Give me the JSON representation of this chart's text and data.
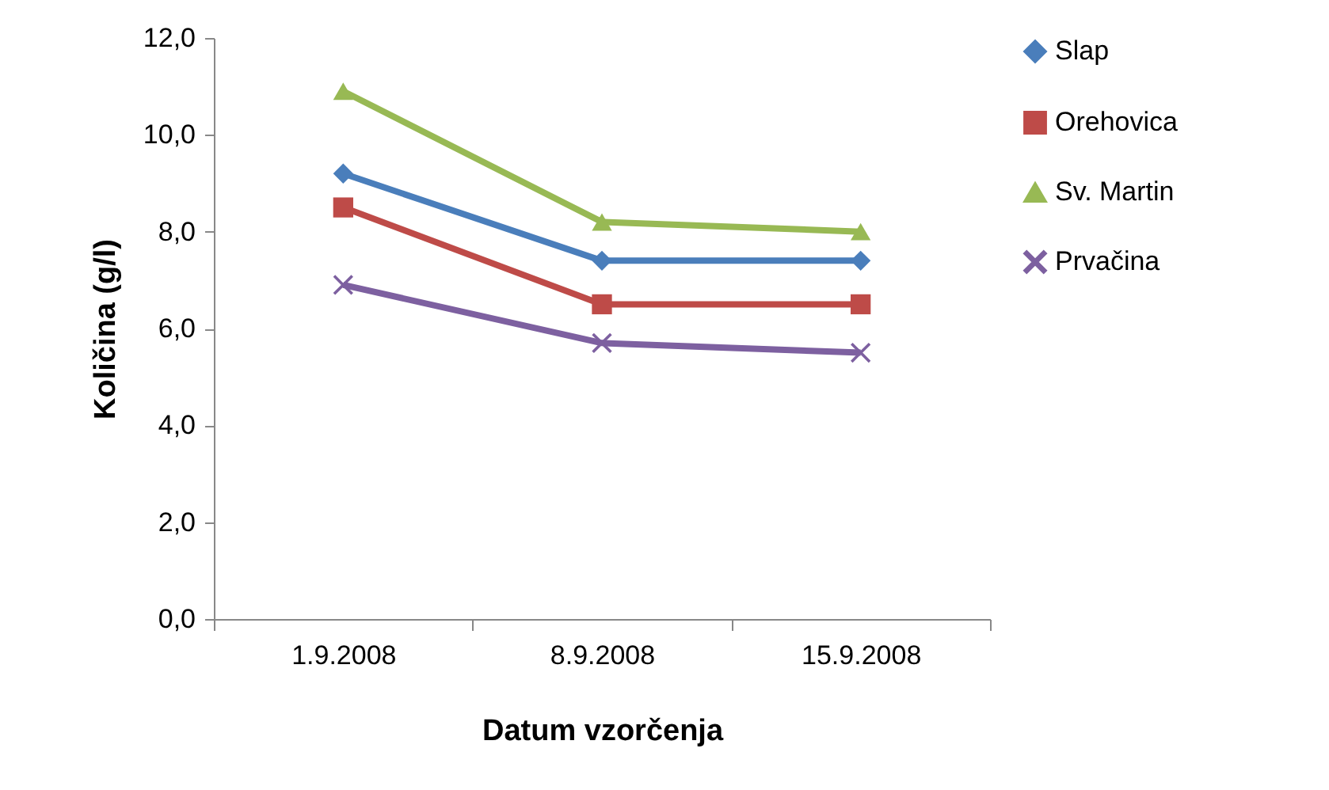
{
  "chart_data": {
    "type": "line",
    "xlabel": "Datum vzorčenja",
    "ylabel": "Količina (g/l)",
    "categories": [
      "1.9.2008",
      "8.9.2008",
      "15.9.2008"
    ],
    "series": [
      {
        "name": "Slap",
        "color": "#4a7ebb",
        "marker": "diamond",
        "values": [
          9.2,
          7.4,
          7.4
        ]
      },
      {
        "name": "Orehovica",
        "color": "#be4b48",
        "marker": "square",
        "values": [
          8.5,
          6.5,
          6.5
        ]
      },
      {
        "name": "Sv. Martin",
        "color": "#98b954",
        "marker": "triangle",
        "values": [
          10.9,
          8.2,
          8.0
        ]
      },
      {
        "name": "Prvačina",
        "color": "#7d60a0",
        "marker": "cross",
        "values": [
          6.9,
          5.7,
          5.5
        ]
      }
    ],
    "ylim": [
      0,
      12
    ],
    "yticks": [
      {
        "value": 0,
        "label": "0,0"
      },
      {
        "value": 2,
        "label": "2,0"
      },
      {
        "value": 4,
        "label": "4,0"
      },
      {
        "value": 6,
        "label": "6,0"
      },
      {
        "value": 8,
        "label": "8,0"
      },
      {
        "value": 10,
        "label": "10,0"
      },
      {
        "value": 12,
        "label": "12,0"
      }
    ],
    "grid": false,
    "legend": "right",
    "line_style": "solid"
  }
}
